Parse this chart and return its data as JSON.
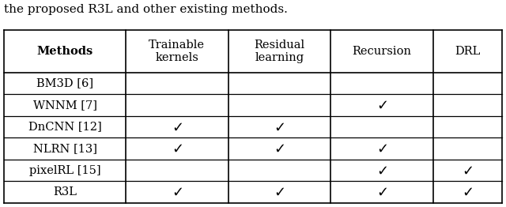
{
  "caption_line1": "the proposed R3L and other existing methods.",
  "col_headers": [
    "Methods",
    "Trainable\nkernels",
    "Residual\nlearning",
    "Recursion",
    "DRL"
  ],
  "rows": [
    {
      "method": "BM3D [6]",
      "trainable": false,
      "residual": false,
      "recursion": false,
      "drl": false
    },
    {
      "method": "WNNM [7]",
      "trainable": false,
      "residual": false,
      "recursion": true,
      "drl": false
    },
    {
      "method": "DnCNN [12]",
      "trainable": true,
      "residual": true,
      "recursion": false,
      "drl": false
    },
    {
      "method": "NLRN [13]",
      "trainable": true,
      "residual": true,
      "recursion": true,
      "drl": false
    },
    {
      "method": "pixelRL [15]",
      "trainable": false,
      "residual": false,
      "recursion": true,
      "drl": true
    },
    {
      "method": "R3L",
      "trainable": true,
      "residual": true,
      "recursion": true,
      "drl": true
    }
  ],
  "background_color": "#ffffff",
  "border_color": "#000000",
  "text_color": "#000000",
  "caption_fontsize": 11,
  "header_fontsize": 10.5,
  "data_fontsize": 10.5,
  "check_fontsize": 13
}
